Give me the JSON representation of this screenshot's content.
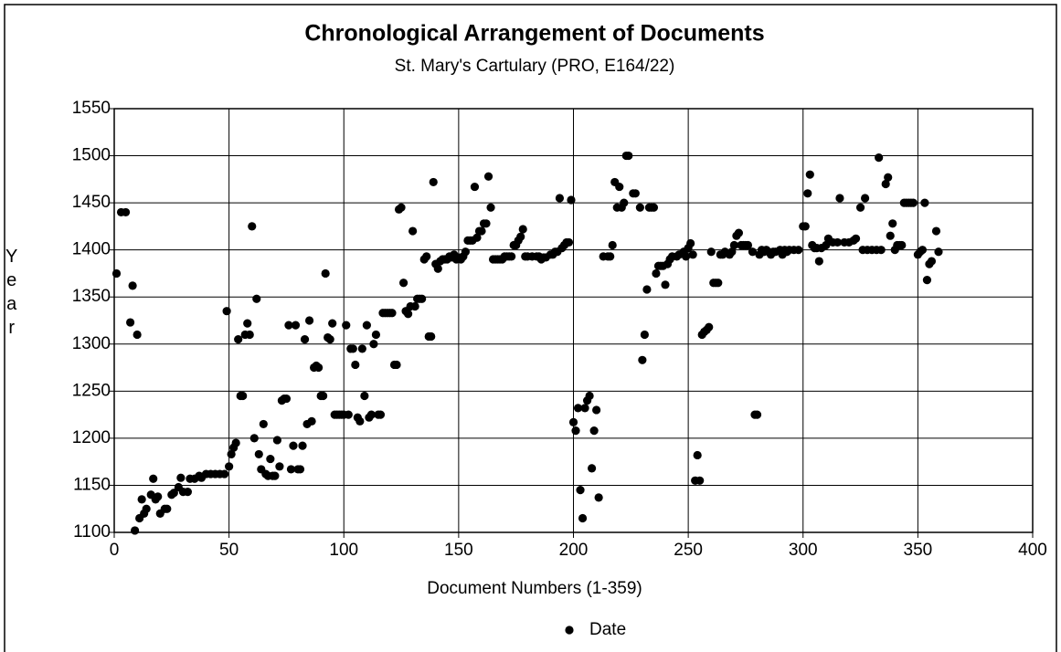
{
  "chart_data": {
    "type": "scatter",
    "title": "Chronological Arrangement of Documents",
    "subtitle": "St. Mary's Cartulary (PRO, E164/22)",
    "x_label": "Document Numbers (1-359)",
    "y_label": "Year",
    "xlim": [
      0,
      400
    ],
    "xticks": [
      0,
      50,
      100,
      150,
      200,
      250,
      300,
      350,
      400
    ],
    "ylim": [
      1100,
      1550
    ],
    "yticks": [
      1100,
      1150,
      1200,
      1250,
      1300,
      1350,
      1400,
      1450,
      1500,
      1550
    ],
    "grid": true,
    "legend": "bottom",
    "series": [
      {
        "name": "Date",
        "color": "#000000",
        "x": [
          1,
          3,
          5,
          7,
          8,
          9,
          10,
          11,
          12,
          13,
          14,
          16,
          17,
          18,
          19,
          20,
          22,
          23,
          25,
          26,
          28,
          29,
          30,
          32,
          33,
          35,
          37,
          38,
          40,
          42,
          44,
          46,
          48,
          49,
          50,
          51,
          52,
          53,
          54,
          55,
          56,
          57,
          58,
          59,
          60,
          61,
          62,
          63,
          64,
          65,
          66,
          67,
          68,
          69,
          70,
          71,
          72,
          73,
          74,
          75,
          76,
          77,
          78,
          79,
          80,
          81,
          82,
          83,
          84,
          85,
          86,
          87,
          88,
          89,
          90,
          91,
          92,
          93,
          94,
          95,
          96,
          97,
          98,
          99,
          100,
          101,
          102,
          103,
          104,
          105,
          106,
          107,
          108,
          109,
          110,
          111,
          112,
          113,
          114,
          115,
          116,
          117,
          118,
          119,
          120,
          121,
          122,
          123,
          124,
          125,
          126,
          127,
          128,
          129,
          130,
          131,
          132,
          133,
          134,
          135,
          136,
          137,
          138,
          139,
          140,
          141,
          142,
          143,
          144,
          145,
          146,
          147,
          148,
          149,
          150,
          151,
          152,
          153,
          154,
          155,
          156,
          157,
          158,
          159,
          160,
          161,
          162,
          163,
          164,
          165,
          166,
          167,
          168,
          169,
          170,
          171,
          172,
          173,
          174,
          175,
          176,
          177,
          178,
          179,
          180,
          182,
          184,
          185,
          186,
          187,
          188,
          190,
          191,
          192,
          193,
          194,
          195,
          196,
          197,
          198,
          199,
          200,
          201,
          202,
          203,
          204,
          205,
          206,
          207,
          208,
          209,
          210,
          211,
          213,
          215,
          216,
          217,
          218,
          219,
          220,
          221,
          222,
          223,
          224,
          226,
          227,
          229,
          230,
          231,
          232,
          233,
          234,
          235,
          236,
          237,
          238,
          239,
          240,
          241,
          242,
          243,
          245,
          246,
          248,
          249,
          250,
          251,
          252,
          253,
          254,
          255,
          256,
          257,
          258,
          259,
          260,
          261,
          262,
          263,
          264,
          265,
          266,
          268,
          269,
          270,
          271,
          272,
          273,
          274,
          275,
          276,
          278,
          279,
          280,
          281,
          282,
          283,
          284,
          285,
          286,
          287,
          288,
          290,
          291,
          292,
          293,
          294,
          296,
          298,
          300,
          301,
          302,
          303,
          304,
          305,
          306,
          307,
          308,
          310,
          311,
          313,
          315,
          316,
          318,
          320,
          322,
          323,
          325,
          326,
          327,
          328,
          330,
          332,
          333,
          334,
          336,
          337,
          338,
          339,
          340,
          341,
          342,
          343,
          344,
          345,
          346,
          347,
          348,
          350,
          351,
          352,
          353,
          354,
          355,
          356,
          358,
          359
        ],
        "values": [
          1375,
          1440,
          1440,
          1323,
          1362,
          1102,
          1310,
          1115,
          1135,
          1120,
          1125,
          1140,
          1157,
          1135,
          1138,
          1120,
          1125,
          1125,
          1140,
          1142,
          1148,
          1158,
          1143,
          1143,
          1157,
          1157,
          1160,
          1158,
          1162,
          1162,
          1162,
          1162,
          1162,
          1335,
          1170,
          1183,
          1190,
          1195,
          1305,
          1245,
          1245,
          1310,
          1322,
          1310,
          1425,
          1200,
          1348,
          1183,
          1167,
          1215,
          1162,
          1160,
          1178,
          1160,
          1160,
          1198,
          1170,
          1240,
          1242,
          1242,
          1320,
          1167,
          1192,
          1320,
          1167,
          1167,
          1192,
          1305,
          1215,
          1325,
          1218,
          1275,
          1277,
          1275,
          1245,
          1245,
          1375,
          1307,
          1305,
          1322,
          1225,
          1225,
          1225,
          1225,
          1225,
          1320,
          1225,
          1295,
          1295,
          1278,
          1222,
          1218,
          1295,
          1245,
          1320,
          1222,
          1225,
          1300,
          1310,
          1225,
          1225,
          1333,
          1333,
          1333,
          1333,
          1333,
          1278,
          1278,
          1443,
          1445,
          1365,
          1335,
          1332,
          1340,
          1420,
          1340,
          1348,
          1348,
          1348,
          1390,
          1393,
          1308,
          1308,
          1472,
          1385,
          1380,
          1388,
          1390,
          1390,
          1390,
          1393,
          1392,
          1395,
          1390,
          1392,
          1390,
          1393,
          1398,
          1410,
          1410,
          1410,
          1467,
          1413,
          1420,
          1420,
          1428,
          1428,
          1478,
          1445,
          1390,
          1390,
          1390,
          1390,
          1390,
          1393,
          1393,
          1393,
          1393,
          1405,
          1405,
          1410,
          1414,
          1422,
          1393,
          1393,
          1393,
          1393,
          1393,
          1390,
          1392,
          1392,
          1395,
          1395,
          1398,
          1398,
          1455,
          1402,
          1405,
          1408,
          1408,
          1453,
          1217,
          1208,
          1232,
          1145,
          1115,
          1232,
          1240,
          1245,
          1168,
          1208,
          1230,
          1137,
          1393,
          1393,
          1393,
          1405,
          1472,
          1445,
          1467,
          1445,
          1450,
          1500,
          1500,
          1460,
          1460,
          1445,
          1283,
          1310,
          1358,
          1445,
          1445,
          1445,
          1375,
          1383,
          1383,
          1383,
          1363,
          1385,
          1390,
          1393,
          1393,
          1395,
          1398,
          1393,
          1402,
          1407,
          1395,
          1155,
          1182,
          1155,
          1310,
          1313,
          1315,
          1318,
          1398,
          1365,
          1365,
          1365,
          1395,
          1395,
          1398,
          1395,
          1398,
          1405,
          1415,
          1418,
          1405,
          1405,
          1405,
          1405,
          1398,
          1225,
          1225,
          1395,
          1400,
          1398,
          1400,
          1398,
          1395,
          1398,
          1398,
          1400,
          1395,
          1400,
          1398,
          1400,
          1400,
          1400,
          1425,
          1425,
          1460,
          1480,
          1405,
          1402,
          1402,
          1388,
          1402,
          1405,
          1412,
          1408,
          1408,
          1455,
          1408,
          1408,
          1410,
          1412,
          1445,
          1400,
          1455,
          1400,
          1400,
          1400,
          1498,
          1400,
          1470,
          1477,
          1415,
          1428,
          1400,
          1405,
          1405,
          1405,
          1450,
          1450,
          1450,
          1450,
          1450,
          1395,
          1398,
          1400,
          1450,
          1368,
          1385,
          1388,
          1420,
          1398
        ]
      }
    ]
  }
}
